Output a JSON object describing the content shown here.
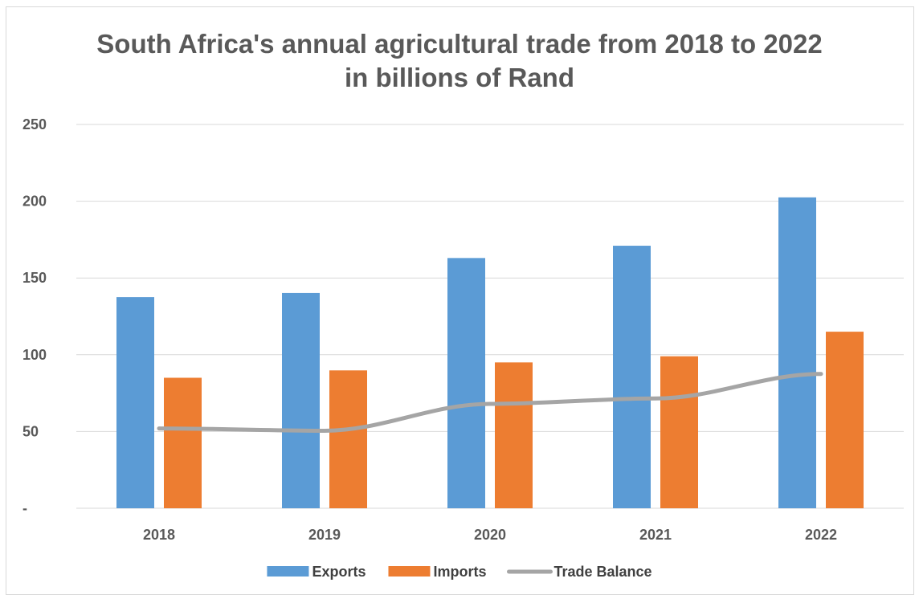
{
  "chart_data": {
    "type": "bar",
    "title_line1": "South Africa's annual agricultural trade from 2018 to 2022",
    "title_line2": "in billions of Rand",
    "categories": [
      "2018",
      "2019",
      "2020",
      "2021",
      "2022"
    ],
    "ylim": [
      0,
      250
    ],
    "yticks": [
      0,
      50,
      100,
      150,
      200,
      250
    ],
    "ytick_labels": [
      "-",
      "50",
      "100",
      "150",
      "200",
      "250"
    ],
    "grid": true,
    "legend_position": "bottom",
    "series": [
      {
        "name": "Exports",
        "kind": "bar",
        "color": "#5b9bd5",
        "values": [
          137.5,
          140.2,
          163.0,
          171.0,
          202.5
        ]
      },
      {
        "name": "Imports",
        "kind": "bar",
        "color": "#ed7d31",
        "values": [
          85.0,
          89.8,
          95.0,
          99.0,
          115.0
        ]
      },
      {
        "name": "Trade Balance",
        "kind": "line",
        "color": "#a5a5a5",
        "values": [
          52.0,
          50.5,
          68.0,
          71.5,
          87.5
        ]
      }
    ]
  }
}
